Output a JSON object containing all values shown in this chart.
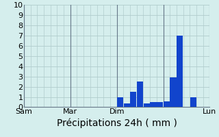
{
  "xlabel": "Précipitations 24h ( mm )",
  "background_color": "#d5eeed",
  "bar_color": "#1144cc",
  "grid_color": "#b0cccc",
  "separator_color": "#667788",
  "ylim": [
    0,
    10
  ],
  "yticks": [
    0,
    1,
    2,
    3,
    4,
    5,
    6,
    7,
    8,
    9,
    10
  ],
  "num_bars": 28,
  "bar_values": [
    0,
    0,
    0,
    0,
    0,
    0,
    0,
    0,
    0,
    0,
    0,
    0,
    0,
    0,
    1.0,
    0.4,
    1.5,
    2.5,
    0.4,
    0.5,
    0.5,
    0.6,
    2.9,
    7.0,
    0,
    1.0,
    0,
    0
  ],
  "day_positions": [
    0,
    7,
    14,
    21,
    28
  ],
  "day_labels": [
    "Sam",
    "Mar",
    "Dim",
    "",
    "Lun"
  ],
  "xlabel_fontsize": 10,
  "tick_fontsize": 8,
  "figsize": [
    3.2,
    2.0
  ],
  "dpi": 100
}
